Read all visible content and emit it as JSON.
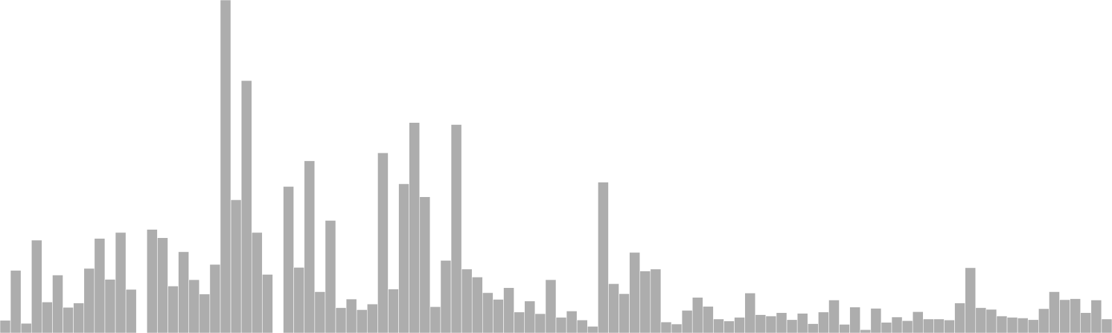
{
  "chart_data": {
    "type": "bar",
    "title": "",
    "xlabel": "",
    "ylabel": "",
    "ylim": [
      0,
      100
    ],
    "grid": false,
    "legend": "none",
    "colors": {
      "fill": "#adadad",
      "stroke": "#ffffff"
    },
    "values": [
      3.8,
      18.8,
      2.9,
      27.9,
      9.3,
      17.4,
      7.7,
      9.0,
      19.4,
      28.4,
      16.1,
      30.2,
      13.1,
      0,
      31.1,
      28.6,
      14.1,
      24.4,
      16.0,
      11.7,
      20.6,
      100,
      40.0,
      75.8,
      30.2,
      17.6,
      0,
      44.0,
      19.7,
      51.7,
      12.4,
      33.8,
      7.6,
      10.2,
      7.0,
      8.7,
      54.1,
      13.2,
      44.8,
      63.2,
      40.9,
      7.9,
      21.8,
      62.6,
      19.2,
      16.8,
      12.1,
      10.1,
      13.6,
      6.3,
      9.6,
      5.8,
      16.0,
      4.7,
      6.6,
      3.9,
      2.0,
      45.3,
      14.8,
      11.8,
      24.2,
      18.6,
      19.2,
      3.3,
      2.7,
      6.8,
      10.7,
      8.0,
      4.2,
      3.6,
      4.7,
      12.0,
      5.5,
      5.1,
      6.1,
      4.0,
      5.9,
      2.8,
      6.3,
      9.9,
      2.6,
      7.8,
      1.0,
      7.4,
      3.2,
      4.8,
      3.7,
      6.4,
      4.2,
      4.2,
      3.9,
      9.0,
      19.6,
      7.6,
      7.1,
      5.1,
      4.7,
      4.5,
      4.0,
      7.3,
      12.4,
      10.0,
      10.3,
      6.1,
      9.9,
      4.2
    ]
  }
}
